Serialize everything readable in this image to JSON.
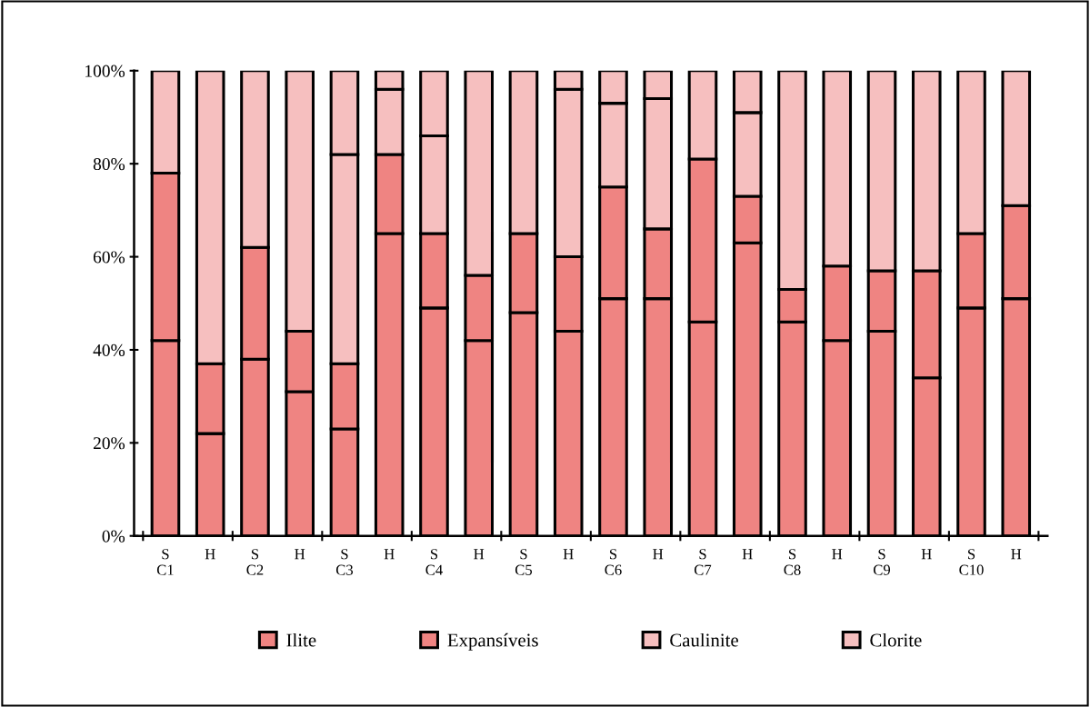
{
  "chart_data": {
    "type": "bar",
    "stacked": true,
    "categories": [
      "S\nC1",
      "H",
      "S\nC2",
      "H",
      "S\nC3",
      "H",
      "S\nC4",
      "H",
      "S\nC5",
      "H",
      "S\nC6",
      "H",
      "S\nC7",
      "H",
      "S\nC8",
      "H",
      "S\nC9",
      "H",
      "S\nC10",
      "H"
    ],
    "series": [
      {
        "name": "Ilite",
        "color": "#ef8482",
        "values": [
          42,
          22,
          38,
          31,
          23,
          65,
          49,
          42,
          48,
          44,
          51,
          51,
          46,
          63,
          46,
          42,
          44,
          34,
          49,
          51
        ]
      },
      {
        "name": "Expansíveis",
        "color": "#ef8482",
        "values": [
          36,
          15,
          24,
          13,
          14,
          17,
          16,
          14,
          17,
          16,
          24,
          15,
          35,
          10,
          7,
          16,
          13,
          23,
          16,
          20
        ]
      },
      {
        "name": "Caulinite",
        "color": "#f6bfbf",
        "values": [
          22,
          63,
          38,
          56,
          45,
          14,
          21,
          44,
          35,
          36,
          18,
          28,
          19,
          18,
          47,
          42,
          43,
          43,
          35,
          29
        ]
      },
      {
        "name": "Clorite",
        "color": "#f6bfbf",
        "values": [
          null,
          null,
          null,
          null,
          18,
          4,
          14,
          null,
          null,
          4,
          7,
          6,
          null,
          9,
          null,
          null,
          null,
          null,
          null,
          null
        ]
      }
    ],
    "ylim": [
      0,
      100
    ],
    "yticks": [
      {
        "value": 0,
        "label": "0%"
      },
      {
        "value": 20,
        "label": "20%"
      },
      {
        "value": 40,
        "label": "40%"
      },
      {
        "value": 60,
        "label": "60%"
      },
      {
        "value": 80,
        "label": "80%"
      },
      {
        "value": 100,
        "label": "100%"
      }
    ],
    "grid": false,
    "legend": "bottom"
  }
}
